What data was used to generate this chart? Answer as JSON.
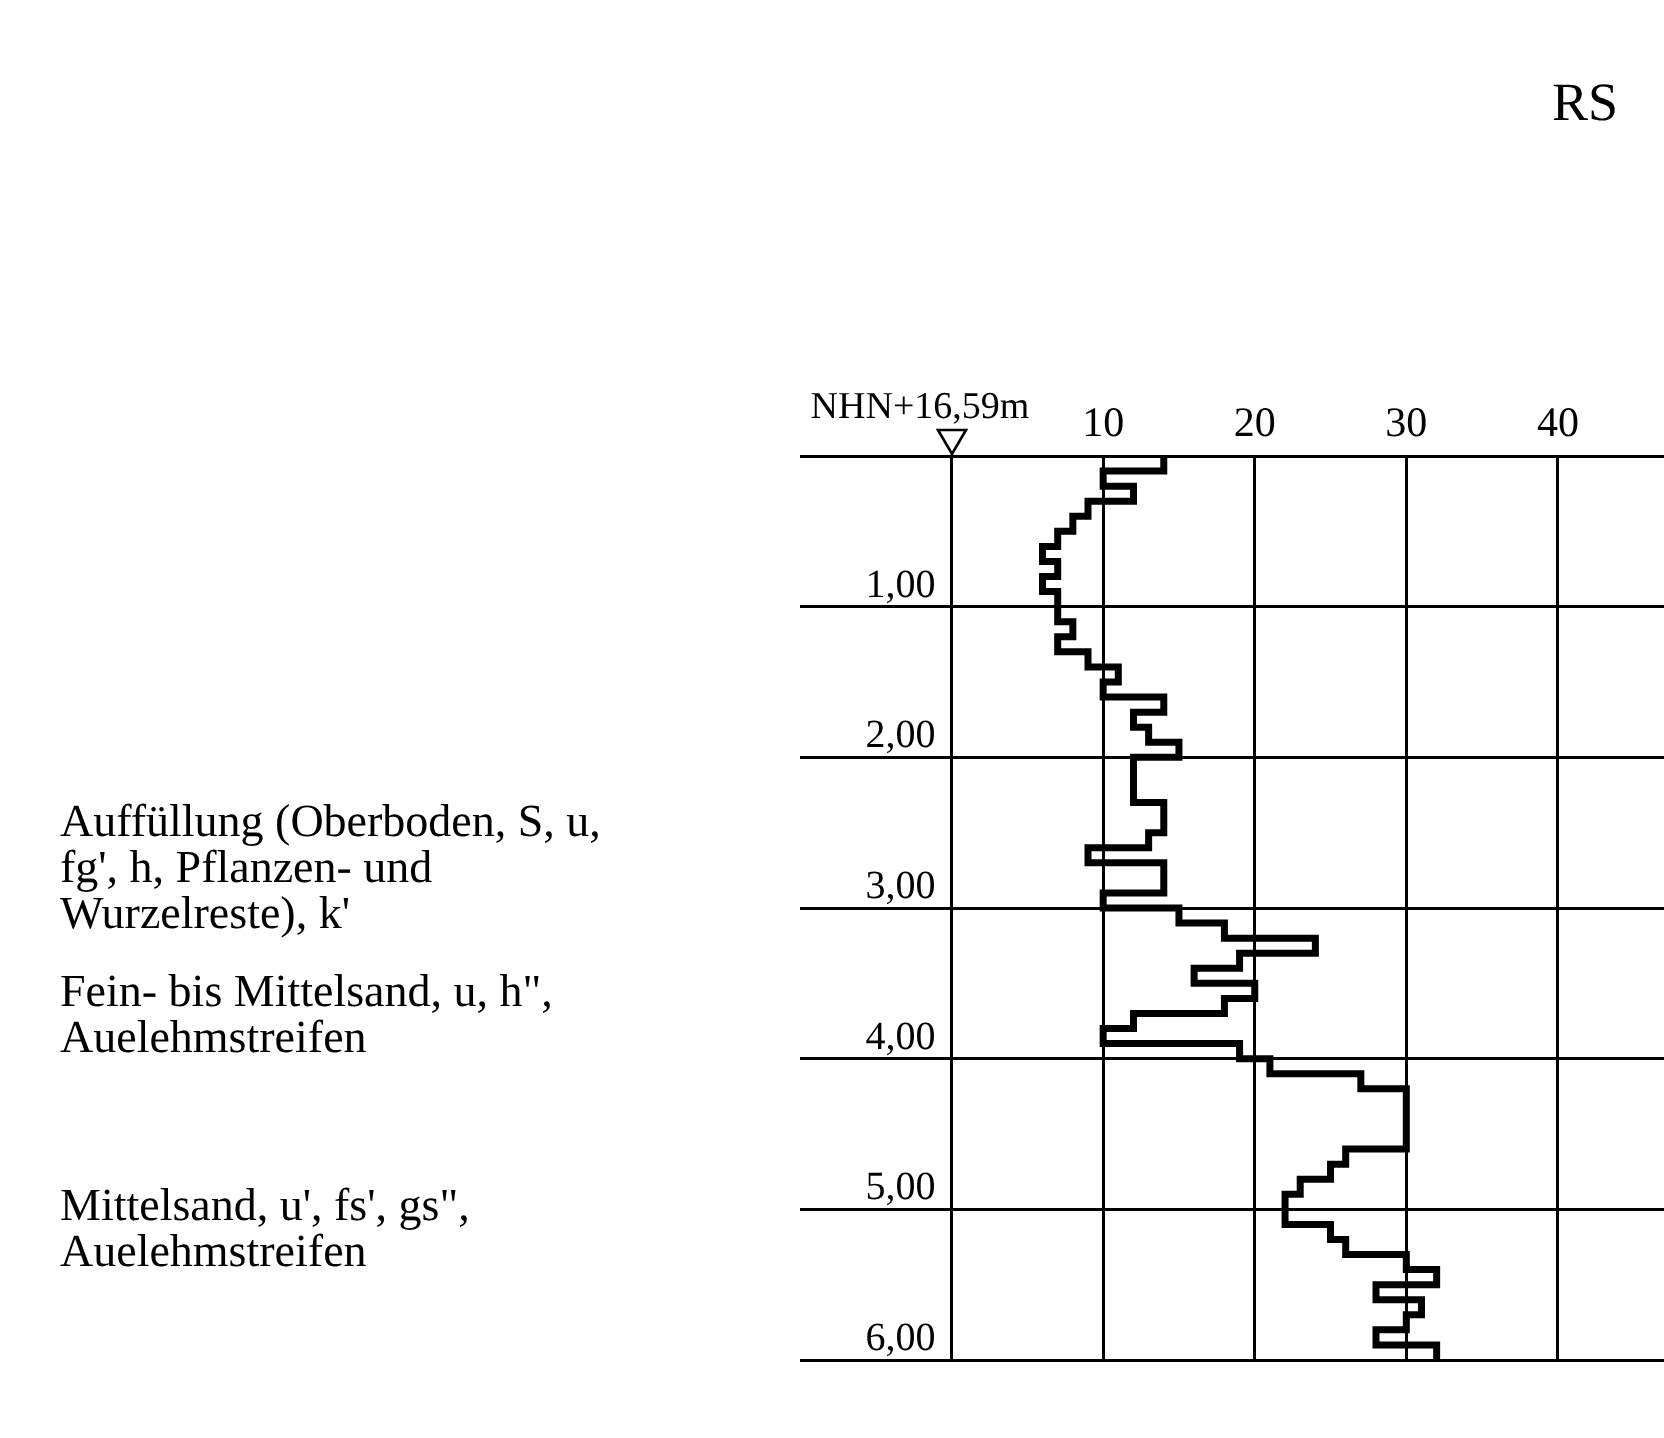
{
  "chart_data": {
    "type": "step",
    "orientation": "horizontal",
    "x": [
      0,
      0.1,
      0.2,
      0.3,
      0.4,
      0.5,
      0.6,
      0.7,
      0.8,
      0.9,
      1.0,
      1.1,
      1.2,
      1.3,
      1.4,
      1.5,
      1.6,
      1.7,
      1.8,
      1.9,
      2.0,
      2.1,
      2.2,
      2.3,
      2.4,
      2.5,
      2.6,
      2.7,
      2.8,
      2.9,
      3.0,
      3.1,
      3.2,
      3.3,
      3.4,
      3.5,
      3.6,
      3.7,
      3.8,
      3.9,
      4.0,
      4.1,
      4.2,
      4.3,
      4.4,
      4.5,
      4.6,
      4.7,
      4.8,
      4.9,
      5.0,
      5.1,
      5.2,
      5.3,
      5.4,
      5.5,
      5.6,
      5.7,
      5.8,
      5.9,
      6.0
    ],
    "series": [
      {
        "color": "#000000",
        "values": [
          14,
          10,
          12,
          9,
          8,
          7,
          6,
          7,
          6,
          7,
          7,
          8,
          7,
          9,
          11,
          10,
          14,
          12,
          13,
          15,
          12,
          12,
          12,
          14,
          14,
          13,
          9,
          14,
          14,
          10,
          15,
          18,
          24,
          19,
          16,
          20,
          18,
          12,
          10,
          19,
          21,
          27,
          30,
          30,
          30,
          30,
          26,
          25,
          23,
          22,
          22,
          25,
          26,
          30,
          32,
          28,
          31,
          30,
          28,
          32,
          32
        ]
      }
    ],
    "xlim": [
      -10,
      47
    ],
    "xticks": [
      {
        "value": 0,
        "label": null
      },
      10,
      20,
      30,
      40
    ],
    "ylim": [
      6,
      0
    ],
    "yticks": [
      {
        "value": 0,
        "label": null
      },
      {
        "value": 1,
        "label": "1,00"
      },
      {
        "value": 2,
        "label": "2,00"
      },
      {
        "value": 3,
        "label": "3,00"
      },
      {
        "value": 4,
        "label": "4,00"
      },
      {
        "value": 5,
        "label": "5,00"
      },
      {
        "value": 6,
        "label": "6,00"
      }
    ],
    "grid": true,
    "annotations": [
      "RS",
      "NHN+16,59m",
      "Auffüllung (Oberboden, S, u, fg', h, Pflanzen- und Wurzelreste), k'",
      "Fein- bis Mittelsand, u, h\", Auelehmstreifen",
      "Mittelsand, u', fs', gs\", Auelehmstreifen"
    ]
  }
}
